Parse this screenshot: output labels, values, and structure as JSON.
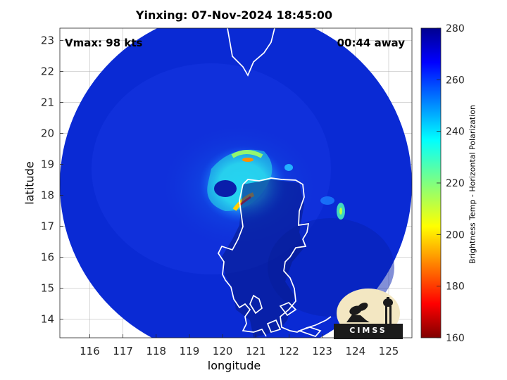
{
  "title": "Yinxing: 07-Nov-2024 18:45:00",
  "vmax_label": "Vmax: 98 kts",
  "time_away_label": "00:44 away",
  "x_axis": {
    "label": "longitude",
    "ticks": [
      116,
      117,
      118,
      119,
      120,
      121,
      122,
      123,
      124,
      125
    ],
    "range": [
      115.1,
      125.7
    ]
  },
  "y_axis": {
    "label": "latitude",
    "ticks": [
      14,
      15,
      16,
      17,
      18,
      19,
      20,
      21,
      22,
      23
    ],
    "range": [
      13.4,
      23.4
    ]
  },
  "colorbar": {
    "label": "Brightness Temp - Horizontal Polarization",
    "ticks": [
      160,
      180,
      200,
      220,
      240,
      260,
      280
    ],
    "range": [
      160,
      280
    ],
    "colormap": "jet"
  },
  "storm_center": {
    "lon": 120.1,
    "lat": 18.1
  },
  "logo": {
    "text": "CIMSS",
    "name": "CIMSS logo"
  },
  "colors": {
    "coastline": "#ffffff",
    "swath_background": "#0a2ad4",
    "land": "#071a8a",
    "grid": "#b0b0b0"
  }
}
